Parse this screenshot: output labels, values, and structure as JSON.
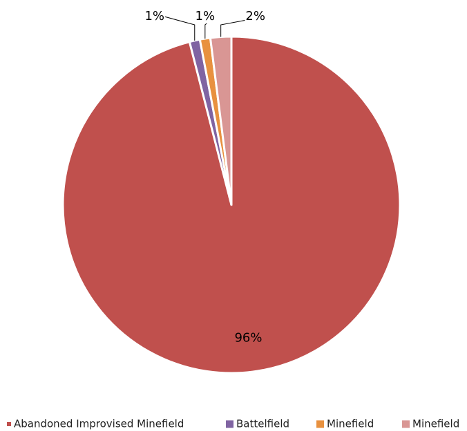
{
  "chart_data": {
    "type": "pie",
    "categories": [
      "Abandoned Improvised Minefield",
      "Battelfield",
      "Minefield",
      "Minefield"
    ],
    "values": [
      96,
      1,
      1,
      2
    ],
    "value_labels": [
      "96%",
      "1%",
      "1%",
      "2%"
    ],
    "colors": [
      "#c0504d",
      "#8064a2",
      "#e8913f",
      "#d99694"
    ],
    "legend": "bottom"
  }
}
